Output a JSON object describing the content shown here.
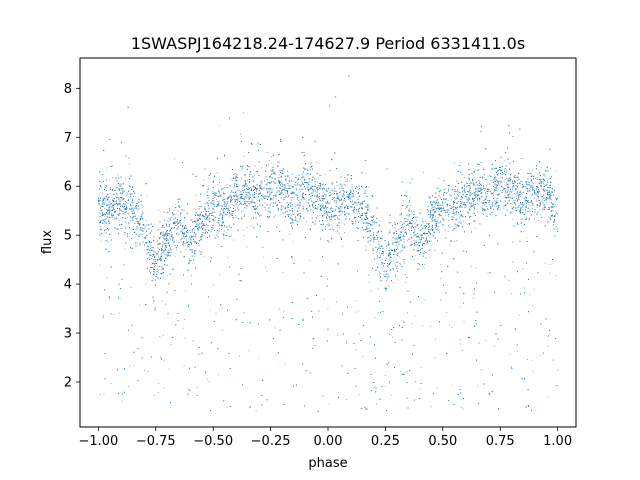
{
  "chart_data": {
    "type": "scatter",
    "title": "1SWASPJ164218.24-174627.9 Period 6331411.0s",
    "xlabel": "phase",
    "ylabel": "flux",
    "xlim": [
      -1.08,
      1.08
    ],
    "ylim": [
      1.08,
      8.62
    ],
    "x_ticks": [
      -1.0,
      -0.75,
      -0.5,
      -0.25,
      0.0,
      0.25,
      0.5,
      0.75,
      1.0
    ],
    "x_tick_labels": [
      "−1.00",
      "−0.75",
      "−0.50",
      "−0.25",
      "0.00",
      "0.25",
      "0.50",
      "0.75",
      "1.00"
    ],
    "y_ticks": [
      2,
      3,
      4,
      5,
      6,
      7,
      8
    ],
    "y_tick_labels": [
      "2",
      "3",
      "4",
      "5",
      "6",
      "7",
      "8"
    ],
    "grid": false,
    "series": [
      {
        "color": "#1f77b4",
        "phase_range": [
          -1.0,
          1.0
        ],
        "approx_points": 13000,
        "baseline_profile": {
          "phase": [
            0.0,
            0.05,
            0.1,
            0.15,
            0.2,
            0.25,
            0.3,
            0.35,
            0.4,
            0.45,
            0.5,
            0.55,
            0.6,
            0.65,
            0.7,
            0.75,
            0.8,
            0.85,
            0.9,
            0.95,
            1.0
          ],
          "flux": [
            5.5,
            5.6,
            5.7,
            5.5,
            5.0,
            4.4,
            4.9,
            5.3,
            4.8,
            5.3,
            5.6,
            5.5,
            5.8,
            5.9,
            5.8,
            6.0,
            6.0,
            5.6,
            6.0,
            5.8,
            5.5
          ]
        },
        "flux_max": 8.3,
        "flux_min": 1.4
      }
    ]
  }
}
